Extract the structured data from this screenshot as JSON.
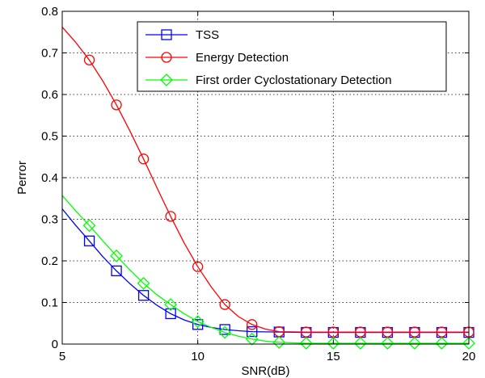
{
  "chart_data": {
    "type": "line",
    "title": "",
    "xlabel": "SNR(dB)",
    "ylabel": "Perror",
    "xlim": [
      5,
      20
    ],
    "ylim": [
      0,
      0.8
    ],
    "xticks": [
      5,
      10,
      15,
      20
    ],
    "yticks": [
      0,
      0.1,
      0.2,
      0.3,
      0.4,
      0.5,
      0.6,
      0.7,
      0.8
    ],
    "grid": true,
    "legend_position": "top-right",
    "series": [
      {
        "name": "TSS",
        "color": "#0000ff",
        "marker": "square",
        "curve_x": [
          5,
          5.5,
          6,
          6.5,
          7,
          7.5,
          8,
          8.5,
          9,
          9.5,
          10,
          10.5,
          11,
          11.5,
          12,
          13,
          14,
          15,
          16,
          17,
          18,
          19,
          20
        ],
        "curve_y": [
          0.325,
          0.285,
          0.248,
          0.21,
          0.176,
          0.145,
          0.117,
          0.093,
          0.073,
          0.058,
          0.047,
          0.04,
          0.035,
          0.032,
          0.03,
          0.029,
          0.028,
          0.028,
          0.028,
          0.028,
          0.028,
          0.028,
          0.028
        ],
        "marker_x": [
          6,
          7,
          8,
          9,
          10,
          11,
          12,
          13,
          14,
          15,
          16,
          17,
          18,
          19,
          20
        ],
        "marker_y": [
          0.248,
          0.176,
          0.117,
          0.073,
          0.047,
          0.035,
          0.03,
          0.029,
          0.028,
          0.028,
          0.028,
          0.028,
          0.028,
          0.028,
          0.028
        ]
      },
      {
        "name": "Energy Detection",
        "color": "#ff0000",
        "marker": "circle",
        "curve_x": [
          5,
          5.5,
          6,
          6.5,
          7,
          7.5,
          8,
          8.5,
          9,
          9.5,
          10,
          10.5,
          11,
          11.5,
          12,
          12.5,
          13,
          14,
          15,
          16,
          17,
          18,
          19,
          20
        ],
        "curve_y": [
          0.762,
          0.725,
          0.683,
          0.632,
          0.575,
          0.512,
          0.445,
          0.375,
          0.307,
          0.243,
          0.186,
          0.137,
          0.095,
          0.066,
          0.047,
          0.036,
          0.03,
          0.029,
          0.029,
          0.029,
          0.029,
          0.029,
          0.029,
          0.029
        ],
        "marker_x": [
          6,
          7,
          8,
          9,
          10,
          11,
          12,
          13,
          14,
          15,
          16,
          17,
          18,
          19,
          20
        ],
        "marker_y": [
          0.683,
          0.575,
          0.445,
          0.307,
          0.186,
          0.095,
          0.047,
          0.03,
          0.029,
          0.029,
          0.029,
          0.029,
          0.029,
          0.029,
          0.029
        ]
      },
      {
        "name": "First order Cyclostationary Detection",
        "color": "#00ff00",
        "marker": "diamond",
        "curve_x": [
          5,
          5.5,
          6,
          6.5,
          7,
          7.5,
          8,
          8.5,
          9,
          9.5,
          10,
          10.5,
          11,
          11.5,
          12,
          12.5,
          13,
          14,
          15,
          16,
          17,
          18,
          19,
          20
        ],
        "curve_y": [
          0.357,
          0.32,
          0.285,
          0.248,
          0.212,
          0.178,
          0.146,
          0.118,
          0.095,
          0.073,
          0.054,
          0.04,
          0.028,
          0.019,
          0.012,
          0.007,
          0.004,
          0.002,
          0.002,
          0.002,
          0.002,
          0.002,
          0.002,
          0.002
        ],
        "marker_x": [
          6,
          7,
          8,
          9,
          10,
          11,
          12,
          13,
          14,
          15,
          16,
          17,
          18,
          19,
          20
        ],
        "marker_y": [
          0.285,
          0.212,
          0.146,
          0.095,
          0.054,
          0.028,
          0.012,
          0.004,
          0.002,
          0.002,
          0.002,
          0.002,
          0.002,
          0.002,
          0.002
        ]
      }
    ]
  }
}
